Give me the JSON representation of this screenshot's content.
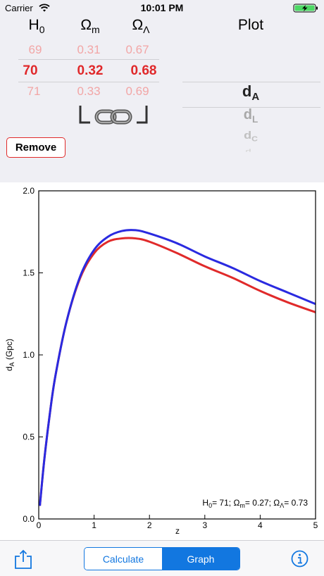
{
  "status_bar": {
    "carrier": "Carrier",
    "time": "10:01 PM"
  },
  "params": {
    "h0": {
      "label": "H",
      "sub": "0",
      "above": "69",
      "selected": "70",
      "below": "71"
    },
    "omega_m": {
      "label": "Ω",
      "sub": "m",
      "above": "0.31",
      "selected": "0.32",
      "below": "0.33"
    },
    "omega_l": {
      "label": "Ω",
      "sub": "Λ",
      "above": "0.67",
      "selected": "0.68",
      "below": "0.69"
    }
  },
  "remove_label": "Remove",
  "plot_picker": {
    "title": "Plot",
    "options": [
      {
        "main": "d",
        "sub": "A"
      },
      {
        "main": "d",
        "sub": "L"
      },
      {
        "main": "d",
        "sub": "C"
      },
      {
        "main": "d",
        "sub": "H"
      }
    ],
    "selected_index": 0
  },
  "chart_data": {
    "type": "line",
    "xlabel": "z",
    "ylabel_main": "d",
    "ylabel_sub": "A",
    "ylabel_unit": " (Gpc)",
    "xlim": [
      0,
      5
    ],
    "ylim": [
      0,
      2.0
    ],
    "x_ticks": [
      "0",
      "1",
      "2",
      "3",
      "4",
      "5"
    ],
    "y_ticks": [
      "0.0",
      "0.5",
      "1.0",
      "1.5",
      "2.0"
    ],
    "grid": false,
    "annotation": {
      "h0_label": "H",
      "h0_sub": "0",
      "h0_value": "= 71; ",
      "om_label": "Ω",
      "om_sub": "m",
      "om_value": "= 0.27; ",
      "ol_label": "Ω",
      "ol_sub": "Λ",
      "ol_value": "= 0.73"
    },
    "series": [
      {
        "color": "#e02a2a",
        "x": [
          0.02,
          0.1,
          0.2,
          0.3,
          0.5,
          0.75,
          1.0,
          1.25,
          1.5,
          1.75,
          2.0,
          2.5,
          3.0,
          3.5,
          4.0,
          4.5,
          5.0
        ],
        "y": [
          0.08,
          0.36,
          0.64,
          0.87,
          1.2,
          1.47,
          1.62,
          1.69,
          1.71,
          1.71,
          1.69,
          1.62,
          1.54,
          1.47,
          1.39,
          1.32,
          1.26
        ]
      },
      {
        "color": "#2a2ae0",
        "x": [
          0.02,
          0.1,
          0.2,
          0.3,
          0.5,
          0.75,
          1.0,
          1.25,
          1.5,
          1.75,
          2.0,
          2.5,
          3.0,
          3.5,
          4.0,
          4.5,
          5.0
        ],
        "y": [
          0.08,
          0.36,
          0.64,
          0.87,
          1.2,
          1.48,
          1.64,
          1.72,
          1.755,
          1.76,
          1.74,
          1.68,
          1.6,
          1.53,
          1.45,
          1.38,
          1.31
        ]
      }
    ]
  },
  "toolbar": {
    "calculate_label": "Calculate",
    "graph_label": "Graph",
    "active": "Graph"
  },
  "colors": {
    "accent": "#1277e0",
    "selected_param": "#e0282a"
  }
}
